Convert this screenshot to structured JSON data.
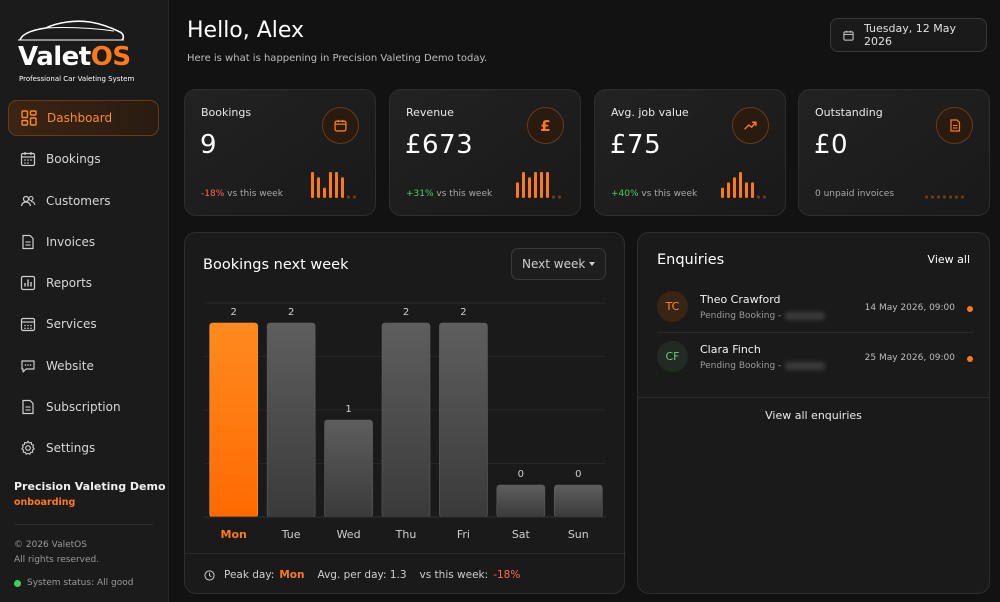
{
  "brand": {
    "name_main": "Valet",
    "name_accent": "OS",
    "tagline": "Professional Car Valeting System",
    "accent_color": "#ff7a1a"
  },
  "sidebar": {
    "items": [
      {
        "label": "Dashboard",
        "icon": "dashboard-grid-icon",
        "active": true
      },
      {
        "label": "Bookings",
        "icon": "calendar-icon"
      },
      {
        "label": "Customers",
        "icon": "customers-icon"
      },
      {
        "label": "Invoices",
        "icon": "document-icon"
      },
      {
        "label": "Reports",
        "icon": "bar-chart-icon"
      },
      {
        "label": "Services",
        "icon": "services-calendar-icon"
      },
      {
        "label": "Website",
        "icon": "chat-icon"
      },
      {
        "label": "Subscription",
        "icon": "document-icon"
      },
      {
        "label": "Settings",
        "icon": "gear-icon"
      }
    ],
    "business_name": "Precision Valeting Demo",
    "business_status": "onboarding",
    "copyright": "© 2026 ValetOS",
    "rights": "All rights reserved.",
    "system_status": "System status: All good",
    "system_status_color": "#3ecf5a"
  },
  "header": {
    "greeting": "Hello, Alex",
    "subtitle": "Here is what is happening in Precision Valeting Demo today.",
    "date": "Tuesday, 12 May 2026"
  },
  "stats": [
    {
      "title": "Bookings",
      "value": "9",
      "icon": "calendar-icon",
      "delta": "-18%",
      "delta_kind": "neg",
      "delta_suffix": " vs this week",
      "spark": [
        5,
        4,
        2,
        5,
        5,
        4
      ]
    },
    {
      "title": "Revenue",
      "value": "£673",
      "icon": "pound-icon",
      "icon_glyph": "£",
      "delta": "+31%",
      "delta_kind": "pos",
      "delta_suffix": " vs this week",
      "spark": [
        3,
        5,
        4,
        5,
        5,
        5
      ]
    },
    {
      "title": "Avg. job value",
      "value": "£75",
      "icon": "trend-up-icon",
      "delta": "+40%",
      "delta_kind": "pos",
      "delta_suffix": " vs this week",
      "spark": [
        2,
        3,
        4,
        5,
        3,
        3
      ]
    },
    {
      "title": "Outstanding",
      "value": "£0",
      "icon": "invoice-icon",
      "delta": "",
      "delta_kind": "none",
      "delta_suffix": "0 unpaid invoices",
      "spark": [
        0,
        0,
        0,
        0,
        0,
        0
      ]
    }
  ],
  "bookings_chart": {
    "title": "Bookings next week",
    "range_select": "Next week",
    "peak_label": "Peak day:",
    "peak_value": "Mon",
    "avg_label": "Avg. per day: 1.3",
    "vs_label": "vs this week:",
    "vs_value": "-18%"
  },
  "chart_data": {
    "type": "bar",
    "title": "Bookings next week",
    "categories": [
      "Mon",
      "Tue",
      "Wed",
      "Thu",
      "Fri",
      "Sat",
      "Sun"
    ],
    "values": [
      2,
      2,
      1,
      2,
      2,
      0,
      0
    ],
    "highlight": "Mon",
    "ylim": [
      0,
      2
    ],
    "grid": true,
    "highlight_color": "#ff7a1a",
    "bar_color": "#5a5a5a"
  },
  "enquiries": {
    "title": "Enquiries",
    "view_all": "View all",
    "items": [
      {
        "initials": "TC",
        "name": "Theo Crawford",
        "status": "Pending Booking -",
        "date": "14 May 2026, 09:00",
        "avatar_bg": "#3a2414",
        "avatar_fg": "#ff8a3a"
      },
      {
        "initials": "CF",
        "name": "Clara Finch",
        "status": "Pending Booking -",
        "date": "25 May 2026, 09:00",
        "avatar_bg": "#232a24",
        "avatar_fg": "#5fd07a"
      }
    ],
    "view_all_enquiries": "View all enquiries"
  }
}
